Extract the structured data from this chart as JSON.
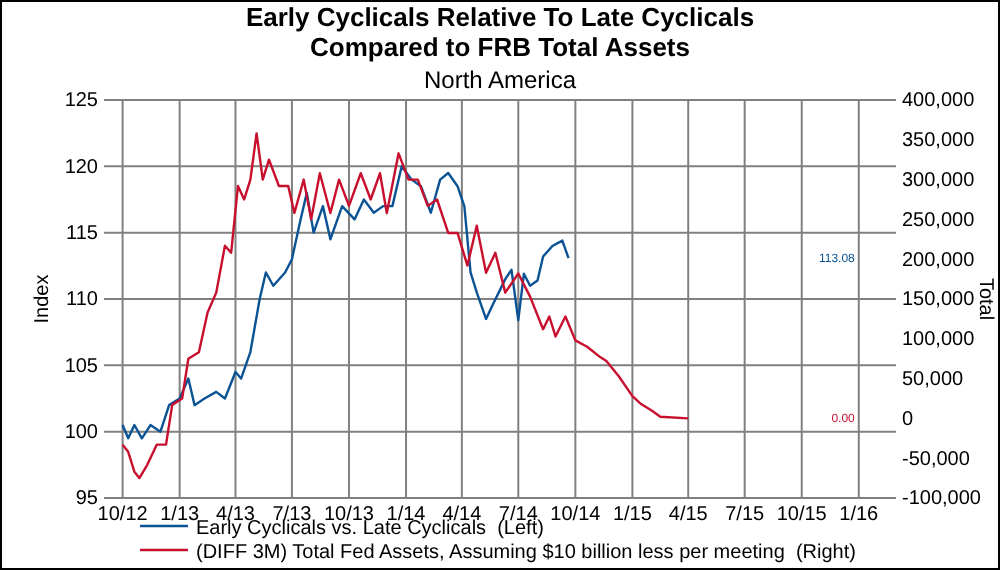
{
  "chart_data": {
    "type": "line",
    "title": "Early Cyclicals Relative To Late Cyclicals\nCompared to FRB Total Assets",
    "subtitle": "North America",
    "ylabel": "Index",
    "y2label": "Total",
    "xlim": [
      "2012-09-01",
      "2016-03-01"
    ],
    "xticks": [
      {
        "value": "2012-10-01",
        "label": "10/12"
      },
      {
        "value": "2013-01-01",
        "label": "1/13"
      },
      {
        "value": "2013-04-01",
        "label": "4/13"
      },
      {
        "value": "2013-07-01",
        "label": "7/13"
      },
      {
        "value": "2013-10-01",
        "label": "10/13"
      },
      {
        "value": "2014-01-01",
        "label": "1/14"
      },
      {
        "value": "2014-04-01",
        "label": "4/14"
      },
      {
        "value": "2014-07-01",
        "label": "7/14"
      },
      {
        "value": "2014-10-01",
        "label": "10/14"
      },
      {
        "value": "2015-01-01",
        "label": "1/15"
      },
      {
        "value": "2015-04-01",
        "label": "4/15"
      },
      {
        "value": "2015-07-01",
        "label": "7/15"
      },
      {
        "value": "2015-10-01",
        "label": "10/15"
      },
      {
        "value": "2016-01-01",
        "label": "1/16"
      }
    ],
    "ylim": [
      95,
      125
    ],
    "yticks": [
      95,
      100,
      105,
      110,
      115,
      120,
      125
    ],
    "y2lim": [
      -100000,
      400000
    ],
    "y2ticks": [
      {
        "value": -100000,
        "label": "-100,000"
      },
      {
        "value": -50000,
        "label": "-50,000"
      },
      0,
      {
        "value": 50000,
        "label": "50,000"
      },
      {
        "value": 100000,
        "label": "100,000"
      },
      {
        "value": 150000,
        "label": "150,000"
      },
      {
        "value": 200000,
        "label": "200,000"
      },
      {
        "value": 250000,
        "label": "250,000"
      },
      {
        "value": 300000,
        "label": "300,000"
      },
      {
        "value": 350000,
        "label": "350,000"
      },
      {
        "value": 400000,
        "label": "400,000"
      }
    ],
    "grid": true,
    "legend": "bottom",
    "marker": "none",
    "line_style": "solid",
    "annotations": [
      "113.08",
      "0.00"
    ],
    "series": [
      {
        "name": "Early Cyclicals vs. Late Cyclicals  (Left)",
        "color": "#0b5394",
        "x": [
          "2012-10-01",
          "2012-10-10",
          "2012-10-20",
          "2012-11-01",
          "2012-11-15",
          "2012-12-01",
          "2012-12-15",
          "2013-01-01",
          "2013-01-15",
          "2013-01-25",
          "2013-02-10",
          "2013-03-01",
          "2013-03-15",
          "2013-04-01",
          "2013-04-10",
          "2013-04-25",
          "2013-05-10",
          "2013-05-20",
          "2013-06-01",
          "2013-06-20",
          "2013-07-01",
          "2013-07-15",
          "2013-07-25",
          "2013-08-05",
          "2013-08-20",
          "2013-09-01",
          "2013-09-20",
          "2013-10-10",
          "2013-10-25",
          "2013-11-10",
          "2013-11-25",
          "2013-12-10",
          "2013-12-25",
          "2014-01-10",
          "2014-01-25",
          "2014-02-10",
          "2014-02-25",
          "2014-03-10",
          "2014-03-25",
          "2014-04-05",
          "2014-04-15",
          "2014-04-25",
          "2014-05-10",
          "2014-05-20",
          "2014-06-10",
          "2014-06-20",
          "2014-07-01",
          "2014-07-10",
          "2014-07-20",
          "2014-08-01",
          "2014-08-10",
          "2014-08-25",
          "2014-09-10",
          "2014-09-20"
        ],
        "values": [
          100.5,
          99.5,
          100.5,
          99.5,
          100.5,
          100,
          102,
          102.5,
          104,
          102,
          102.5,
          103,
          102.5,
          104.5,
          104,
          106,
          110,
          112,
          111,
          112,
          113,
          116,
          118,
          115,
          117,
          114.5,
          117,
          116,
          117.5,
          116.5,
          117,
          117,
          120,
          119,
          118.5,
          116.5,
          119,
          119.5,
          118.5,
          117,
          112,
          110.5,
          108.5,
          109.5,
          111.5,
          112.2,
          108.4,
          111.9,
          111,
          111.4,
          113.2,
          114,
          114.4,
          113.08
        ]
      },
      {
        "name": "(DIFF 3M) Total Fed Assets, Assuming $10 billion less per meeting  (Right)",
        "color": "#c8102e",
        "axis": "y2",
        "x": [
          "2012-10-01",
          "2012-10-10",
          "2012-10-20",
          "2012-10-28",
          "2012-11-10",
          "2012-11-25",
          "2012-12-10",
          "2012-12-20",
          "2013-01-05",
          "2013-01-15",
          "2013-02-01",
          "2013-02-15",
          "2013-03-01",
          "2013-03-15",
          "2013-03-25",
          "2013-04-05",
          "2013-04-15",
          "2013-04-25",
          "2013-05-05",
          "2013-05-15",
          "2013-05-25",
          "2013-06-10",
          "2013-06-25",
          "2013-07-05",
          "2013-07-20",
          "2013-08-01",
          "2013-08-15",
          "2013-09-01",
          "2013-09-15",
          "2013-10-01",
          "2013-10-20",
          "2013-11-05",
          "2013-11-20",
          "2013-12-01",
          "2013-12-20",
          "2014-01-05",
          "2014-01-20",
          "2014-02-05",
          "2014-02-20",
          "2014-03-10",
          "2014-03-25",
          "2014-04-10",
          "2014-04-25",
          "2014-05-10",
          "2014-05-25",
          "2014-06-10",
          "2014-07-01",
          "2014-07-20",
          "2014-08-10",
          "2014-08-20",
          "2014-08-30",
          "2014-09-15",
          "2014-10-01",
          "2014-10-20",
          "2014-11-10",
          "2014-11-20",
          "2014-12-10",
          "2015-01-01",
          "2015-01-15",
          "2015-02-01",
          "2015-02-15",
          "2015-04-01"
        ],
        "values": [
          -33000,
          -42000,
          -67000,
          -75000,
          -58000,
          -33000,
          -33000,
          17000,
          25000,
          75000,
          83000,
          133000,
          158000,
          217000,
          208000,
          292000,
          275000,
          300000,
          358000,
          300000,
          325000,
          292000,
          292000,
          258000,
          300000,
          250000,
          308000,
          258000,
          300000,
          267000,
          308000,
          275000,
          308000,
          258000,
          333000,
          300000,
          300000,
          267000,
          275000,
          233000,
          233000,
          192000,
          242000,
          183000,
          208000,
          158000,
          182000,
          153000,
          112000,
          128000,
          103000,
          128000,
          98000,
          90000,
          77000,
          72000,
          53000,
          28000,
          18000,
          10000,
          2000,
          0
        ]
      }
    ]
  }
}
